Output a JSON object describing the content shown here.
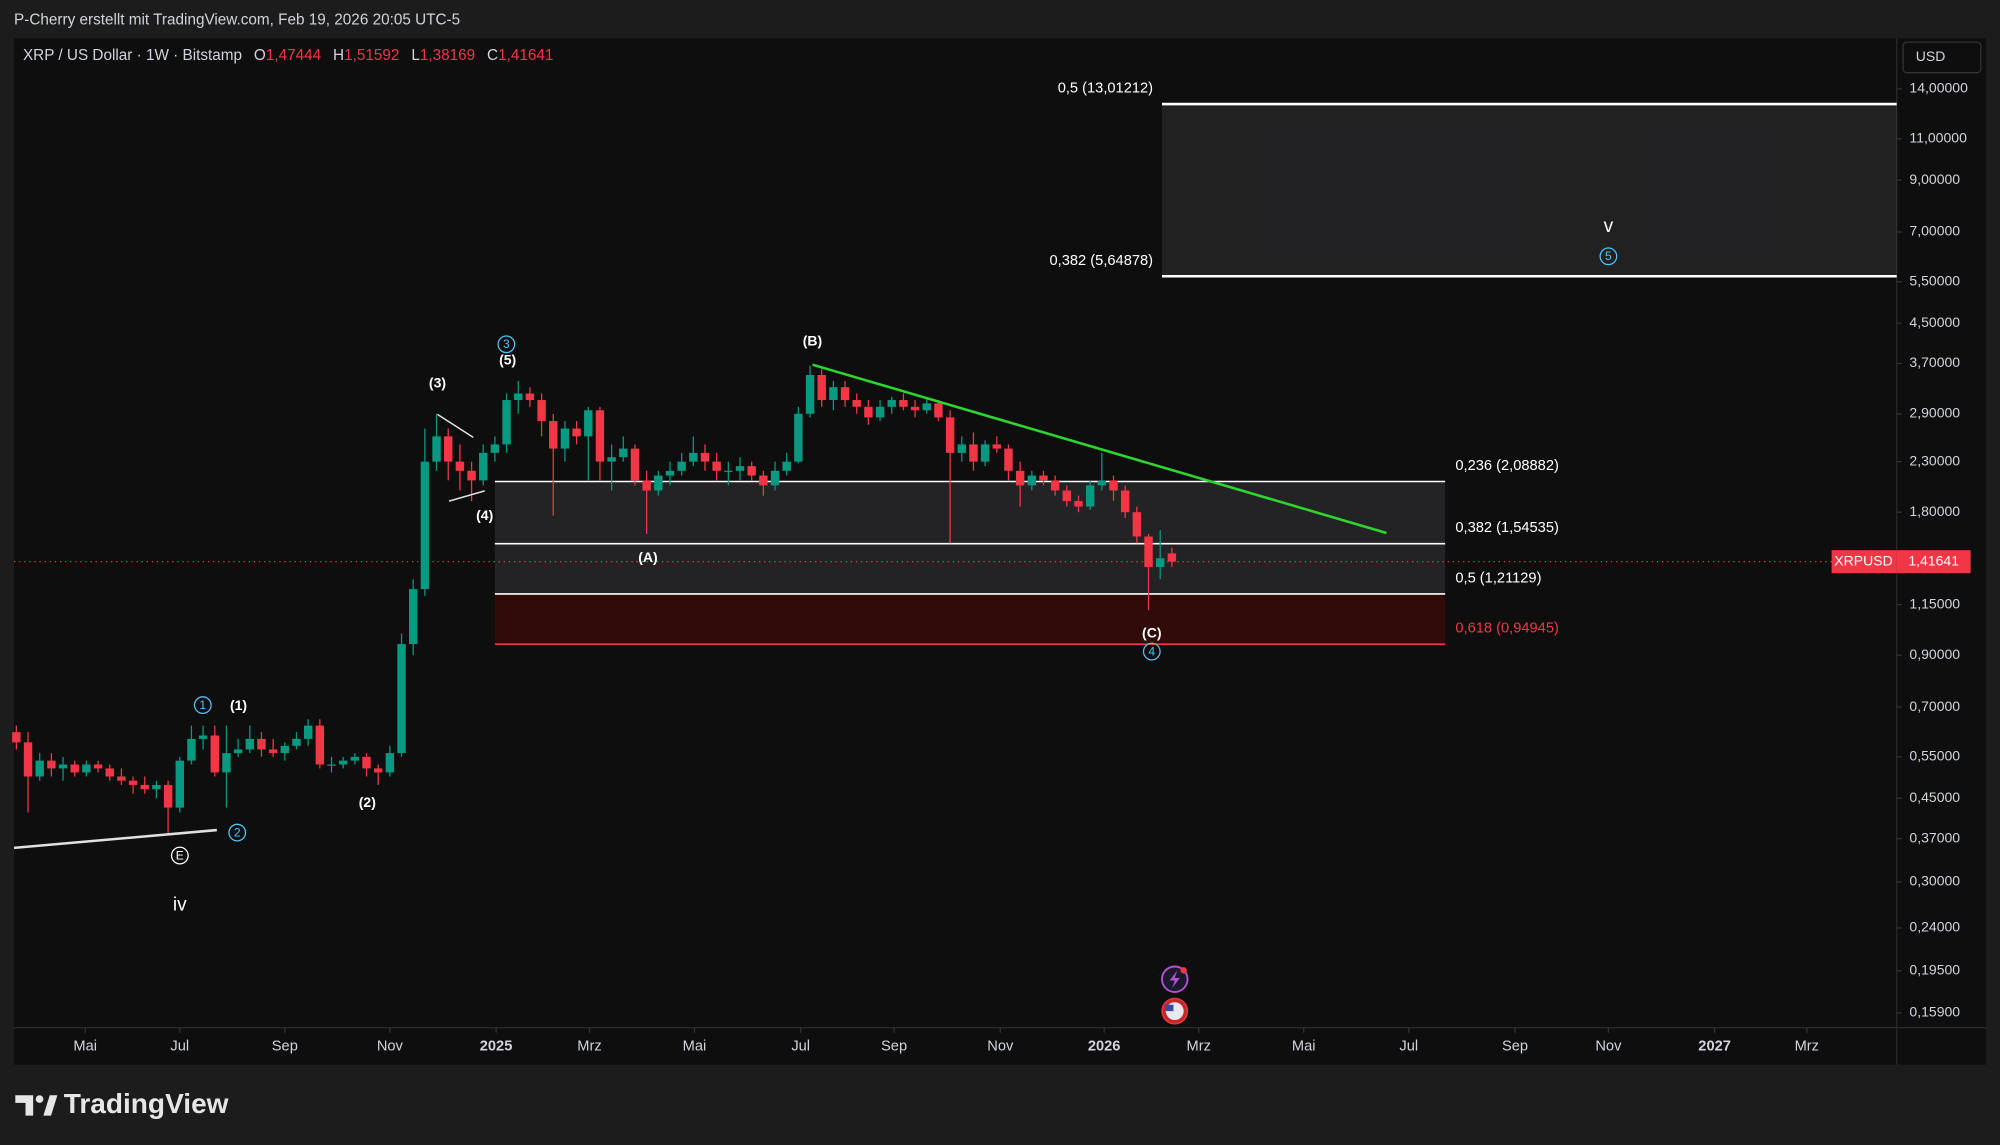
{
  "header": {
    "title": "P-Cherry erstellt mit TradingView.com, Feb 19, 2026 20:05 UTC-5"
  },
  "chart_data": {
    "type": "candlestick",
    "symbol": "XRP / US Dollar · 1W · Bitstamp",
    "ohlc_header": [
      {
        "key": "O",
        "label": "1,47444"
      },
      {
        "key": "H",
        "label": "1,51592"
      },
      {
        "key": "L",
        "label": "1,38169"
      },
      {
        "key": "C",
        "label": "1,41641"
      }
    ],
    "currency": "USD",
    "log_scale": true,
    "grid": false,
    "up_color": "#089981",
    "down_color": "#f23645",
    "categories": [
      null,
      null,
      null,
      null,
      null,
      null,
      null,
      null,
      null,
      null,
      null,
      null,
      null,
      null,
      null,
      null,
      null,
      null,
      null,
      null,
      null,
      null,
      null,
      null,
      null,
      null,
      null,
      null,
      null,
      null,
      null,
      null,
      null,
      null,
      null,
      null,
      null,
      null,
      null,
      null,
      null,
      null,
      null,
      null,
      null,
      null,
      null,
      null,
      null,
      null,
      null,
      null,
      null,
      null,
      null,
      null,
      null,
      null,
      null,
      null,
      null,
      null,
      null,
      null,
      null,
      null,
      null,
      null,
      null,
      null,
      null,
      null,
      null,
      null,
      null,
      null,
      null,
      null,
      null,
      null,
      null,
      null,
      null,
      null,
      null,
      null,
      null,
      null,
      null,
      null,
      null,
      null,
      null,
      null,
      null,
      null,
      null,
      null,
      null,
      null
    ],
    "ohlc": [
      [
        0.62,
        0.64,
        0.57,
        0.59
      ],
      [
        0.59,
        0.62,
        0.42,
        0.5
      ],
      [
        0.5,
        0.56,
        0.49,
        0.54
      ],
      [
        0.54,
        0.56,
        0.5,
        0.52
      ],
      [
        0.52,
        0.55,
        0.49,
        0.53
      ],
      [
        0.53,
        0.54,
        0.5,
        0.51
      ],
      [
        0.51,
        0.54,
        0.5,
        0.53
      ],
      [
        0.53,
        0.54,
        0.51,
        0.52
      ],
      [
        0.52,
        0.53,
        0.49,
        0.5
      ],
      [
        0.5,
        0.52,
        0.48,
        0.49
      ],
      [
        0.49,
        0.5,
        0.46,
        0.48
      ],
      [
        0.48,
        0.5,
        0.46,
        0.47
      ],
      [
        0.47,
        0.49,
        0.45,
        0.48
      ],
      [
        0.48,
        0.49,
        0.38,
        0.43
      ],
      [
        0.43,
        0.55,
        0.42,
        0.54
      ],
      [
        0.54,
        0.64,
        0.53,
        0.6
      ],
      [
        0.6,
        0.64,
        0.57,
        0.61
      ],
      [
        0.61,
        0.64,
        0.5,
        0.51
      ],
      [
        0.51,
        0.64,
        0.43,
        0.56
      ],
      [
        0.56,
        0.6,
        0.55,
        0.57
      ],
      [
        0.57,
        0.64,
        0.56,
        0.6
      ],
      [
        0.6,
        0.62,
        0.55,
        0.57
      ],
      [
        0.57,
        0.6,
        0.55,
        0.56
      ],
      [
        0.56,
        0.59,
        0.54,
        0.58
      ],
      [
        0.58,
        0.62,
        0.57,
        0.6
      ],
      [
        0.6,
        0.66,
        0.58,
        0.64
      ],
      [
        0.64,
        0.66,
        0.52,
        0.53
      ],
      [
        0.53,
        0.55,
        0.51,
        0.53
      ],
      [
        0.53,
        0.55,
        0.52,
        0.54
      ],
      [
        0.54,
        0.56,
        0.53,
        0.55
      ],
      [
        0.55,
        0.56,
        0.5,
        0.52
      ],
      [
        0.52,
        0.53,
        0.48,
        0.51
      ],
      [
        0.51,
        0.58,
        0.5,
        0.56
      ],
      [
        0.56,
        1.0,
        0.55,
        0.95
      ],
      [
        0.95,
        1.3,
        0.9,
        1.24
      ],
      [
        1.24,
        2.7,
        1.2,
        2.3
      ],
      [
        2.3,
        2.9,
        2.2,
        2.6
      ],
      [
        2.6,
        2.7,
        2.1,
        2.3
      ],
      [
        2.3,
        2.5,
        2.0,
        2.2
      ],
      [
        2.2,
        2.3,
        1.9,
        2.1
      ],
      [
        2.1,
        2.5,
        2.05,
        2.4
      ],
      [
        2.4,
        2.6,
        2.3,
        2.5
      ],
      [
        2.5,
        3.2,
        2.4,
        3.1
      ],
      [
        3.1,
        3.4,
        2.9,
        3.2
      ],
      [
        3.2,
        3.3,
        3.0,
        3.1
      ],
      [
        3.1,
        3.2,
        2.6,
        2.8
      ],
      [
        2.8,
        2.9,
        1.77,
        2.45
      ],
      [
        2.45,
        2.8,
        2.3,
        2.7
      ],
      [
        2.7,
        2.8,
        2.5,
        2.6
      ],
      [
        2.6,
        3.0,
        2.1,
        2.95
      ],
      [
        2.95,
        3.0,
        2.1,
        2.3
      ],
      [
        2.3,
        2.5,
        2.0,
        2.35
      ],
      [
        2.35,
        2.6,
        2.3,
        2.45
      ],
      [
        2.45,
        2.5,
        2.05,
        2.1
      ],
      [
        2.1,
        2.2,
        1.62,
        2.0
      ],
      [
        2.0,
        2.2,
        1.95,
        2.15
      ],
      [
        2.15,
        2.3,
        2.05,
        2.2
      ],
      [
        2.2,
        2.4,
        2.15,
        2.3
      ],
      [
        2.3,
        2.6,
        2.25,
        2.4
      ],
      [
        2.4,
        2.5,
        2.2,
        2.3
      ],
      [
        2.3,
        2.4,
        2.1,
        2.2
      ],
      [
        2.2,
        2.3,
        2.05,
        2.2
      ],
      [
        2.2,
        2.35,
        2.1,
        2.25
      ],
      [
        2.25,
        2.3,
        2.1,
        2.15
      ],
      [
        2.15,
        2.2,
        1.95,
        2.05
      ],
      [
        2.05,
        2.3,
        2.0,
        2.2
      ],
      [
        2.2,
        2.4,
        2.15,
        2.3
      ],
      [
        2.3,
        3.0,
        2.28,
        2.9
      ],
      [
        2.9,
        3.66,
        2.85,
        3.5
      ],
      [
        3.5,
        3.6,
        3.0,
        3.1
      ],
      [
        3.1,
        3.4,
        2.95,
        3.3
      ],
      [
        3.3,
        3.4,
        3.0,
        3.1
      ],
      [
        3.1,
        3.2,
        2.9,
        3.0
      ],
      [
        3.0,
        3.1,
        2.75,
        2.85
      ],
      [
        2.85,
        3.1,
        2.8,
        3.0
      ],
      [
        3.0,
        3.15,
        2.9,
        3.1
      ],
      [
        3.1,
        3.2,
        2.95,
        3.0
      ],
      [
        3.0,
        3.1,
        2.85,
        2.95
      ],
      [
        2.95,
        3.15,
        2.9,
        3.05
      ],
      [
        3.05,
        3.1,
        2.8,
        2.85
      ],
      [
        2.85,
        2.95,
        1.55,
        2.4
      ],
      [
        2.4,
        2.6,
        2.3,
        2.5
      ],
      [
        2.5,
        2.65,
        2.2,
        2.3
      ],
      [
        2.3,
        2.55,
        2.25,
        2.5
      ],
      [
        2.5,
        2.6,
        2.4,
        2.45
      ],
      [
        2.45,
        2.5,
        2.1,
        2.2
      ],
      [
        2.2,
        2.3,
        1.85,
        2.05
      ],
      [
        2.05,
        2.2,
        2.0,
        2.15
      ],
      [
        2.15,
        2.2,
        2.05,
        2.1
      ],
      [
        2.1,
        2.15,
        1.95,
        2.0
      ],
      [
        2.0,
        2.05,
        1.85,
        1.9
      ],
      [
        1.9,
        1.95,
        1.8,
        1.85
      ],
      [
        1.85,
        2.1,
        1.82,
        2.05
      ],
      [
        2.05,
        2.4,
        2.0,
        2.1
      ],
      [
        2.1,
        2.15,
        1.9,
        2.0
      ],
      [
        2.0,
        2.05,
        1.75,
        1.8
      ],
      [
        1.8,
        1.85,
        1.55,
        1.6
      ],
      [
        1.6,
        1.62,
        1.12,
        1.38
      ],
      [
        1.38,
        1.65,
        1.3,
        1.44
      ],
      [
        1.47444,
        1.51592,
        1.38169,
        1.41641
      ]
    ],
    "xlim": [
      -0.2,
      161.1
    ],
    "xticks": [
      {
        "value": 5.9,
        "label": "Mai"
      },
      {
        "value": 14.0,
        "label": "Jul"
      },
      {
        "value": 23.0,
        "label": "Sep"
      },
      {
        "value": 32.0,
        "label": "Nov"
      },
      {
        "value": 41.1,
        "label": "2025"
      },
      {
        "value": 49.1,
        "label": "Mrz"
      },
      {
        "value": 58.1,
        "label": "Mai"
      },
      {
        "value": 67.2,
        "label": "Jul"
      },
      {
        "value": 75.2,
        "label": "Sep"
      },
      {
        "value": 84.3,
        "label": "Nov"
      },
      {
        "value": 93.2,
        "label": "2026"
      },
      {
        "value": 101.3,
        "label": "Mrz"
      },
      {
        "value": 110.3,
        "label": "Mai"
      },
      {
        "value": 119.3,
        "label": "Jul"
      },
      {
        "value": 128.4,
        "label": "Sep"
      },
      {
        "value": 136.4,
        "label": "Nov"
      },
      {
        "value": 145.5,
        "label": "2027"
      },
      {
        "value": 153.4,
        "label": "Mrz"
      }
    ],
    "ylim": [
      0.148,
      17.9
    ],
    "yticks": [
      {
        "value": 14,
        "label": "14,00000"
      },
      {
        "value": 11,
        "label": "11,00000"
      },
      {
        "value": 9,
        "label": "9,00000"
      },
      {
        "value": 7,
        "label": "7,00000"
      },
      {
        "value": 5.5,
        "label": "5,50000"
      },
      {
        "value": 4.5,
        "label": "4,50000"
      },
      {
        "value": 3.7,
        "label": "3,70000"
      },
      {
        "value": 2.9,
        "label": "2,90000"
      },
      {
        "value": 2.3,
        "label": "2,30000"
      },
      {
        "value": 1.8,
        "label": "1,80000"
      },
      {
        "value": 1.15,
        "label": "1,15000"
      },
      {
        "value": 0.9,
        "label": "0,90000"
      },
      {
        "value": 0.7,
        "label": "0,70000"
      },
      {
        "value": 0.55,
        "label": "0,55000"
      },
      {
        "value": 0.45,
        "label": "0,45000"
      },
      {
        "value": 0.37,
        "label": "0,37000"
      },
      {
        "value": 0.3,
        "label": "0,30000"
      },
      {
        "value": 0.24,
        "label": "0,24000"
      },
      {
        "value": 0.195,
        "label": "0,19500"
      },
      {
        "value": 0.159,
        "label": "0,15900"
      }
    ],
    "last_price": {
      "name": "XRPUSD",
      "value": 1.41641,
      "label": "1,41641"
    },
    "fib_upper": [
      {
        "label": "0,5 (13,01212)",
        "value": 13.01212,
        "color": "#ffffff"
      },
      {
        "label": "0,382 (5,64878)",
        "value": 5.64878,
        "color": "#ffffff"
      }
    ],
    "fib_lower": [
      {
        "label": "0,236 (2,08882)",
        "value": 2.08882,
        "color": "#ffffff"
      },
      {
        "label": "0,382 (1,54535)",
        "value": 1.54535,
        "color": "#ffffff"
      },
      {
        "label": "0,5 (1,21129)",
        "value": 1.21129,
        "color": "#ffffff"
      },
      {
        "label": "0,618 (0,94945)",
        "value": 0.94945,
        "color": "#f23645"
      }
    ],
    "annotations": [
      "(3)",
      "(5)",
      "3",
      "(4)",
      "(B)",
      "(A)",
      "(C)",
      "4",
      "(1)",
      "1",
      "2",
      "(2)",
      "E",
      "iv",
      "v",
      "5"
    ]
  },
  "footer": {
    "brand": "TradingView"
  }
}
